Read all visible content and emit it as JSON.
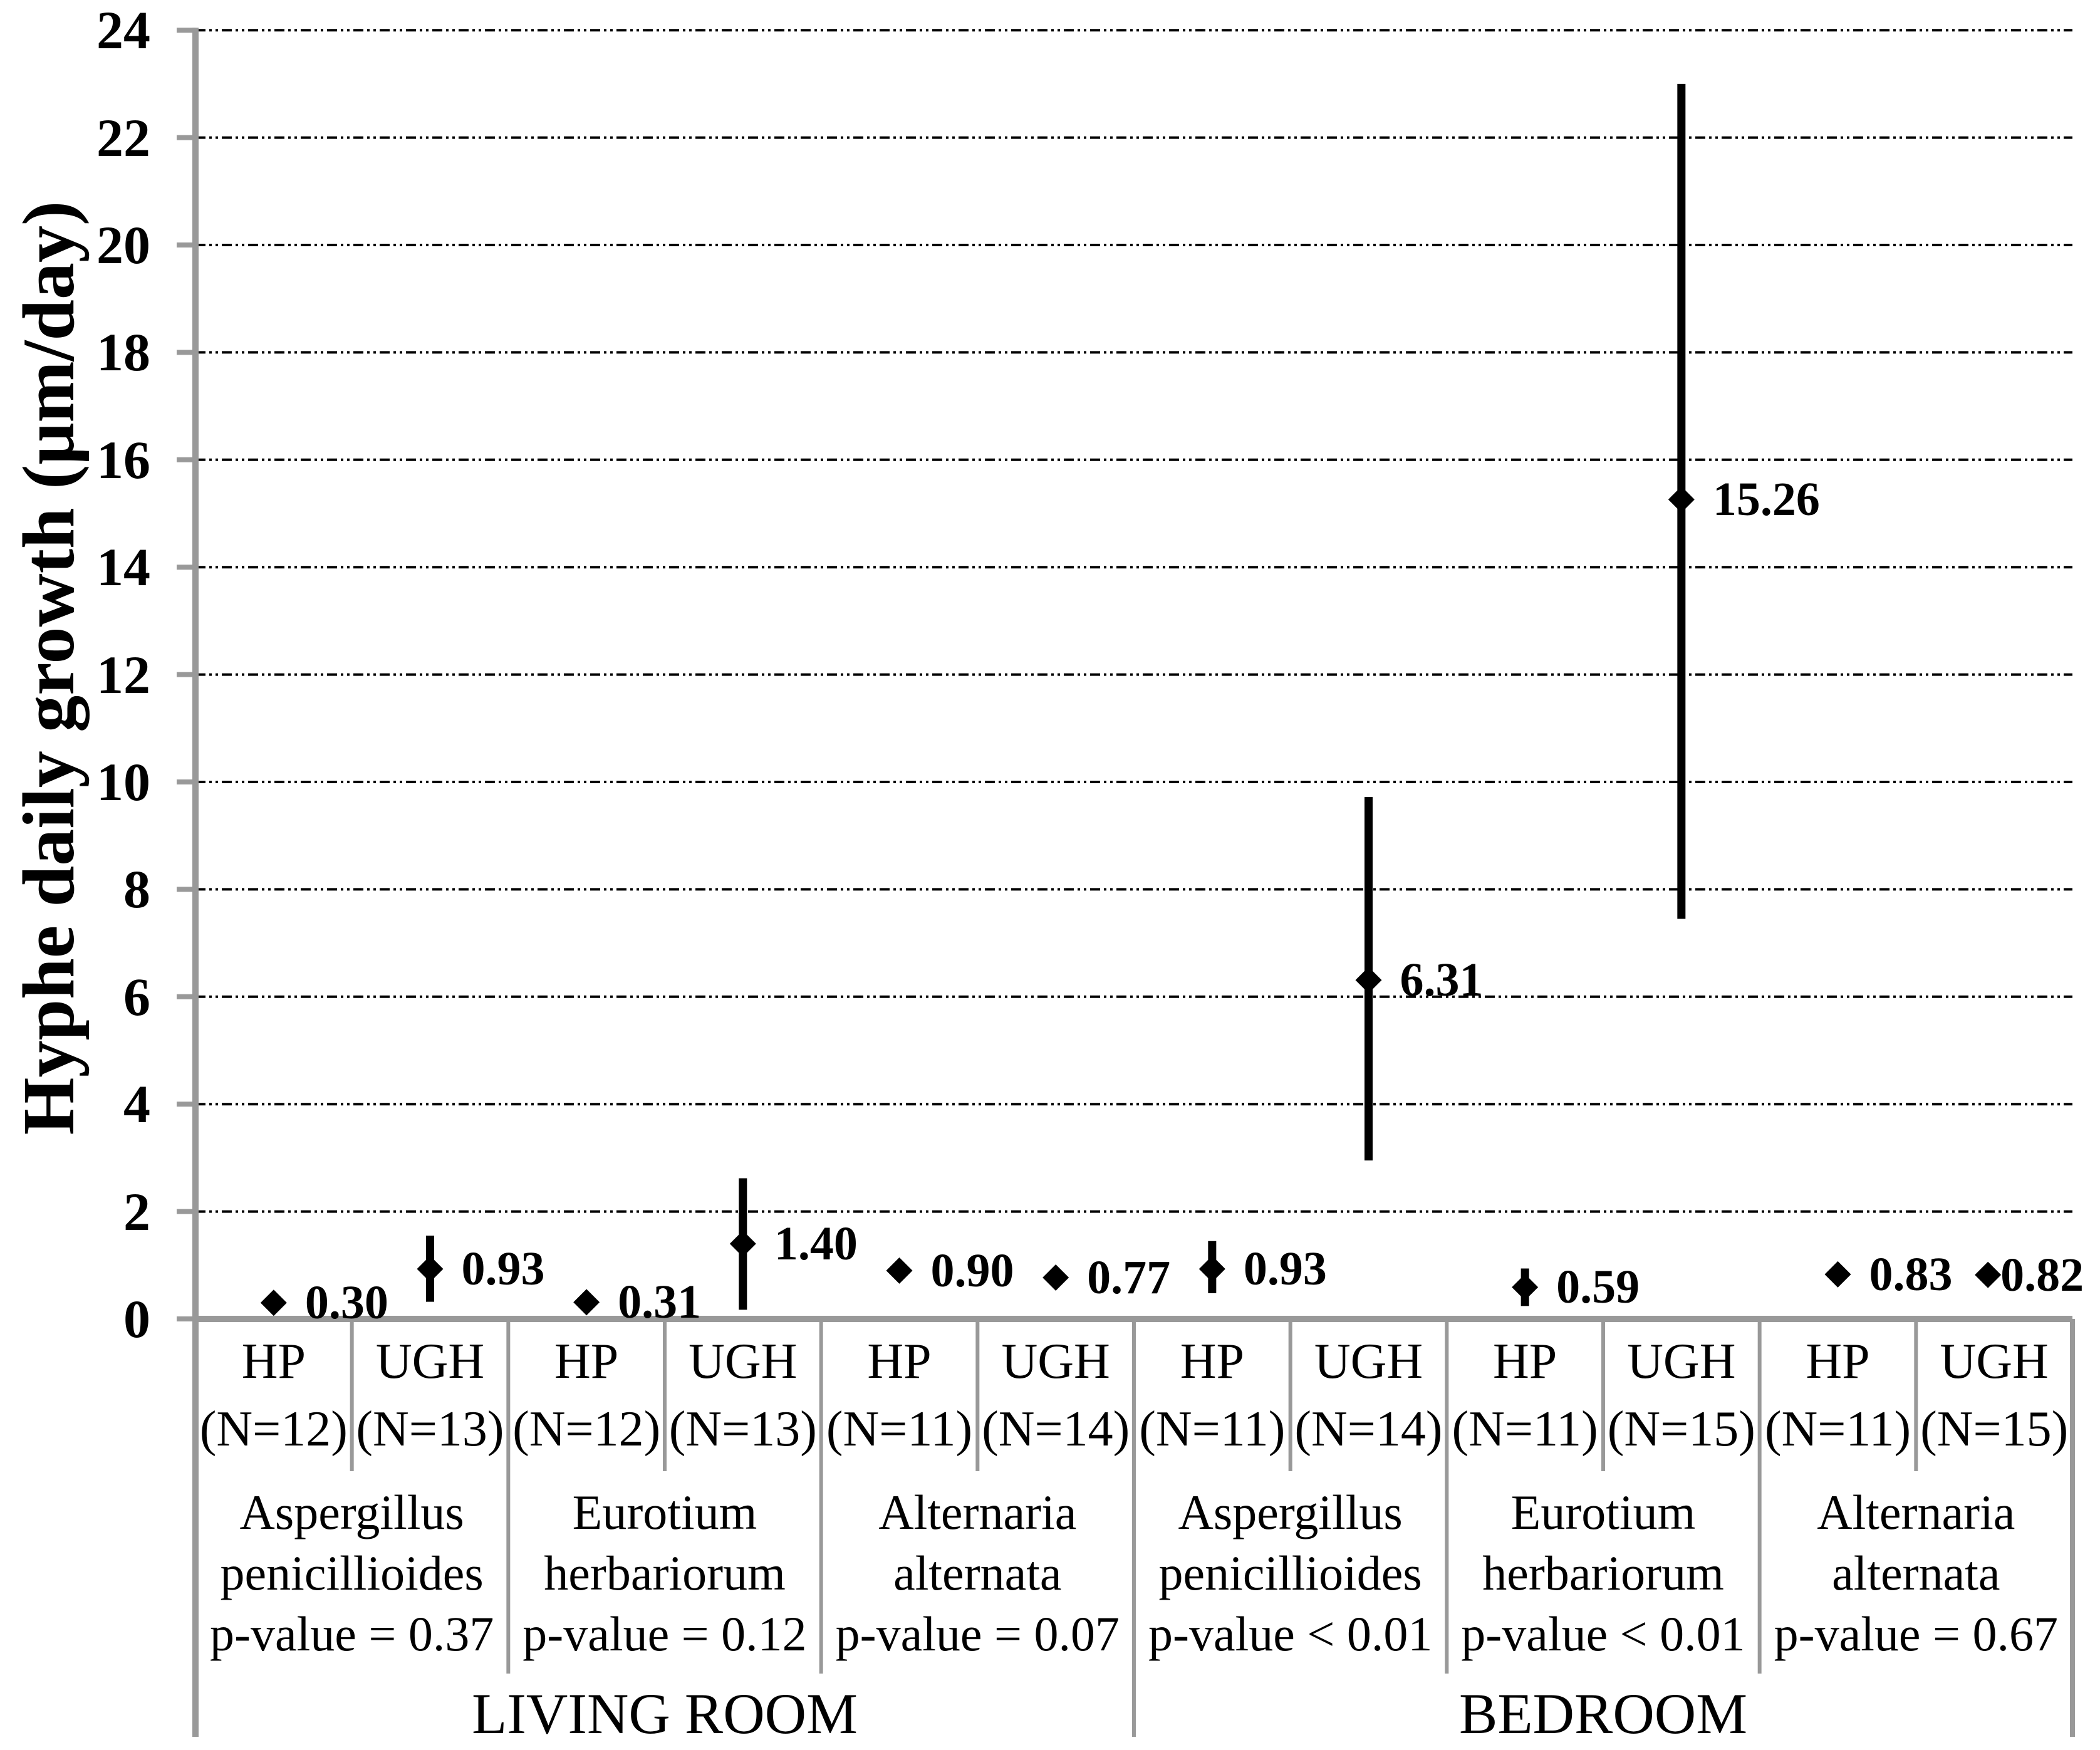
{
  "chart_data": {
    "type": "scatter",
    "subtype": "mean-with-error-bars",
    "title": "",
    "xlabel": "",
    "ylabel": "Hyphe daily growth (μm/day)",
    "ylim": [
      0,
      24
    ],
    "ytick_step": 2,
    "ytick_labels": [
      "0",
      "2",
      "4",
      "6",
      "8",
      "10",
      "12",
      "14",
      "16",
      "18",
      "20",
      "22",
      "24"
    ],
    "grid": "horizontal-dashed-black",
    "legend": "none",
    "marker": "diamond",
    "colors": {
      "axis_gray": "#999999",
      "ink": "#000000",
      "background": "#ffffff"
    },
    "points": [
      {
        "condition": "HP",
        "n_label": "(N=12)",
        "value": 0.3,
        "label": "0.30",
        "err_lo": null,
        "err_hi": null
      },
      {
        "condition": "UGH",
        "n_label": "(N=13)",
        "value": 0.93,
        "label": "0.93",
        "err_lo": 0.32,
        "err_hi": 1.55
      },
      {
        "condition": "HP",
        "n_label": "(N=12)",
        "value": 0.31,
        "label": "0.31",
        "err_lo": null,
        "err_hi": null
      },
      {
        "condition": "UGH",
        "n_label": "(N=13)",
        "value": 1.4,
        "label": "1.40",
        "err_lo": 0.17,
        "err_hi": 2.62
      },
      {
        "condition": "HP",
        "n_label": "(N=11)",
        "value": 0.9,
        "label": "0.90",
        "err_lo": null,
        "err_hi": null
      },
      {
        "condition": "UGH",
        "n_label": "(N=14)",
        "value": 0.77,
        "label": "0.77",
        "err_lo": null,
        "err_hi": null
      },
      {
        "condition": "HP",
        "n_label": "(N=11)",
        "value": 0.93,
        "label": "0.93",
        "err_lo": 0.48,
        "err_hi": 1.45
      },
      {
        "condition": "UGH",
        "n_label": "(N=14)",
        "value": 6.31,
        "label": "6.31",
        "err_lo": 2.95,
        "err_hi": 9.72
      },
      {
        "condition": "HP",
        "n_label": "(N=11)",
        "value": 0.59,
        "label": "0.59",
        "err_lo": 0.24,
        "err_hi": 0.94
      },
      {
        "condition": "UGH",
        "n_label": "(N=15)",
        "value": 15.26,
        "label": "15.26",
        "err_lo": 7.45,
        "err_hi": 23.0
      },
      {
        "condition": "HP",
        "n_label": "(N=11)",
        "value": 0.83,
        "label": "0.83",
        "err_lo": null,
        "err_hi": null
      },
      {
        "condition": "UGH",
        "n_label": "(N=15)",
        "value": 0.82,
        "label": "0.82",
        "err_lo": null,
        "err_hi": null
      }
    ],
    "species_groups": [
      {
        "genus": "Aspergillus",
        "species": "penicillioides",
        "p_label": "p-value = 0.37"
      },
      {
        "genus": "Eurotium",
        "species": "herbariorum",
        "p_label": "p-value = 0.12"
      },
      {
        "genus": "Alternaria",
        "species": "alternata",
        "p_label": "p-value = 0.07"
      },
      {
        "genus": "Aspergillus",
        "species": "penicillioides",
        "p_label": "p-value < 0.01"
      },
      {
        "genus": "Eurotium",
        "species": "herbariorum",
        "p_label": "p-value < 0.01"
      },
      {
        "genus": "Alternaria",
        "species": "alternata",
        "p_label": "p-value = 0.67"
      }
    ],
    "room_groups": [
      {
        "label": "LIVING ROOM"
      },
      {
        "label": "BEDROOM"
      }
    ]
  }
}
